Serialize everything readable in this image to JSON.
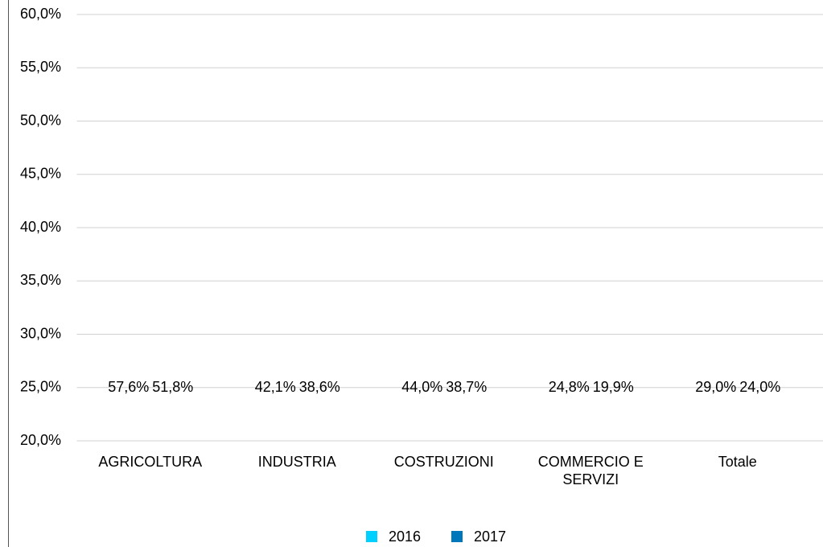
{
  "chart_data": {
    "type": "bar",
    "categories": [
      "AGRICOLTURA",
      "INDUSTRIA",
      "COSTRUZIONI",
      "COMMERCIO E SERVIZI",
      "Totale"
    ],
    "series": [
      {
        "name": "2016",
        "color": "#00d0ff",
        "values": [
          57.6,
          42.1,
          44.0,
          24.8,
          29.0
        ],
        "value_labels": [
          "57,6%",
          "42,1%",
          "44,0%",
          "24,8%",
          "29,0%"
        ]
      },
      {
        "name": "2017",
        "color": "#0077bb",
        "values": [
          51.8,
          38.6,
          38.7,
          19.9,
          24.0
        ],
        "value_labels": [
          "51,8%",
          "38,6%",
          "38,7%",
          "19,9%",
          "24,0%"
        ]
      }
    ],
    "ylim": [
      20,
      60
    ],
    "yticks": [
      {
        "value": 20,
        "label": "20,0%"
      },
      {
        "value": 25,
        "label": "25,0%"
      },
      {
        "value": 30,
        "label": "30,0%"
      },
      {
        "value": 35,
        "label": "35,0%"
      },
      {
        "value": 40,
        "label": "40,0%"
      },
      {
        "value": 45,
        "label": "45,0%"
      },
      {
        "value": 50,
        "label": "50,0%"
      },
      {
        "value": 55,
        "label": "55,0%"
      },
      {
        "value": 60,
        "label": "60,0%"
      }
    ],
    "grid": true,
    "legend": "bottom"
  }
}
